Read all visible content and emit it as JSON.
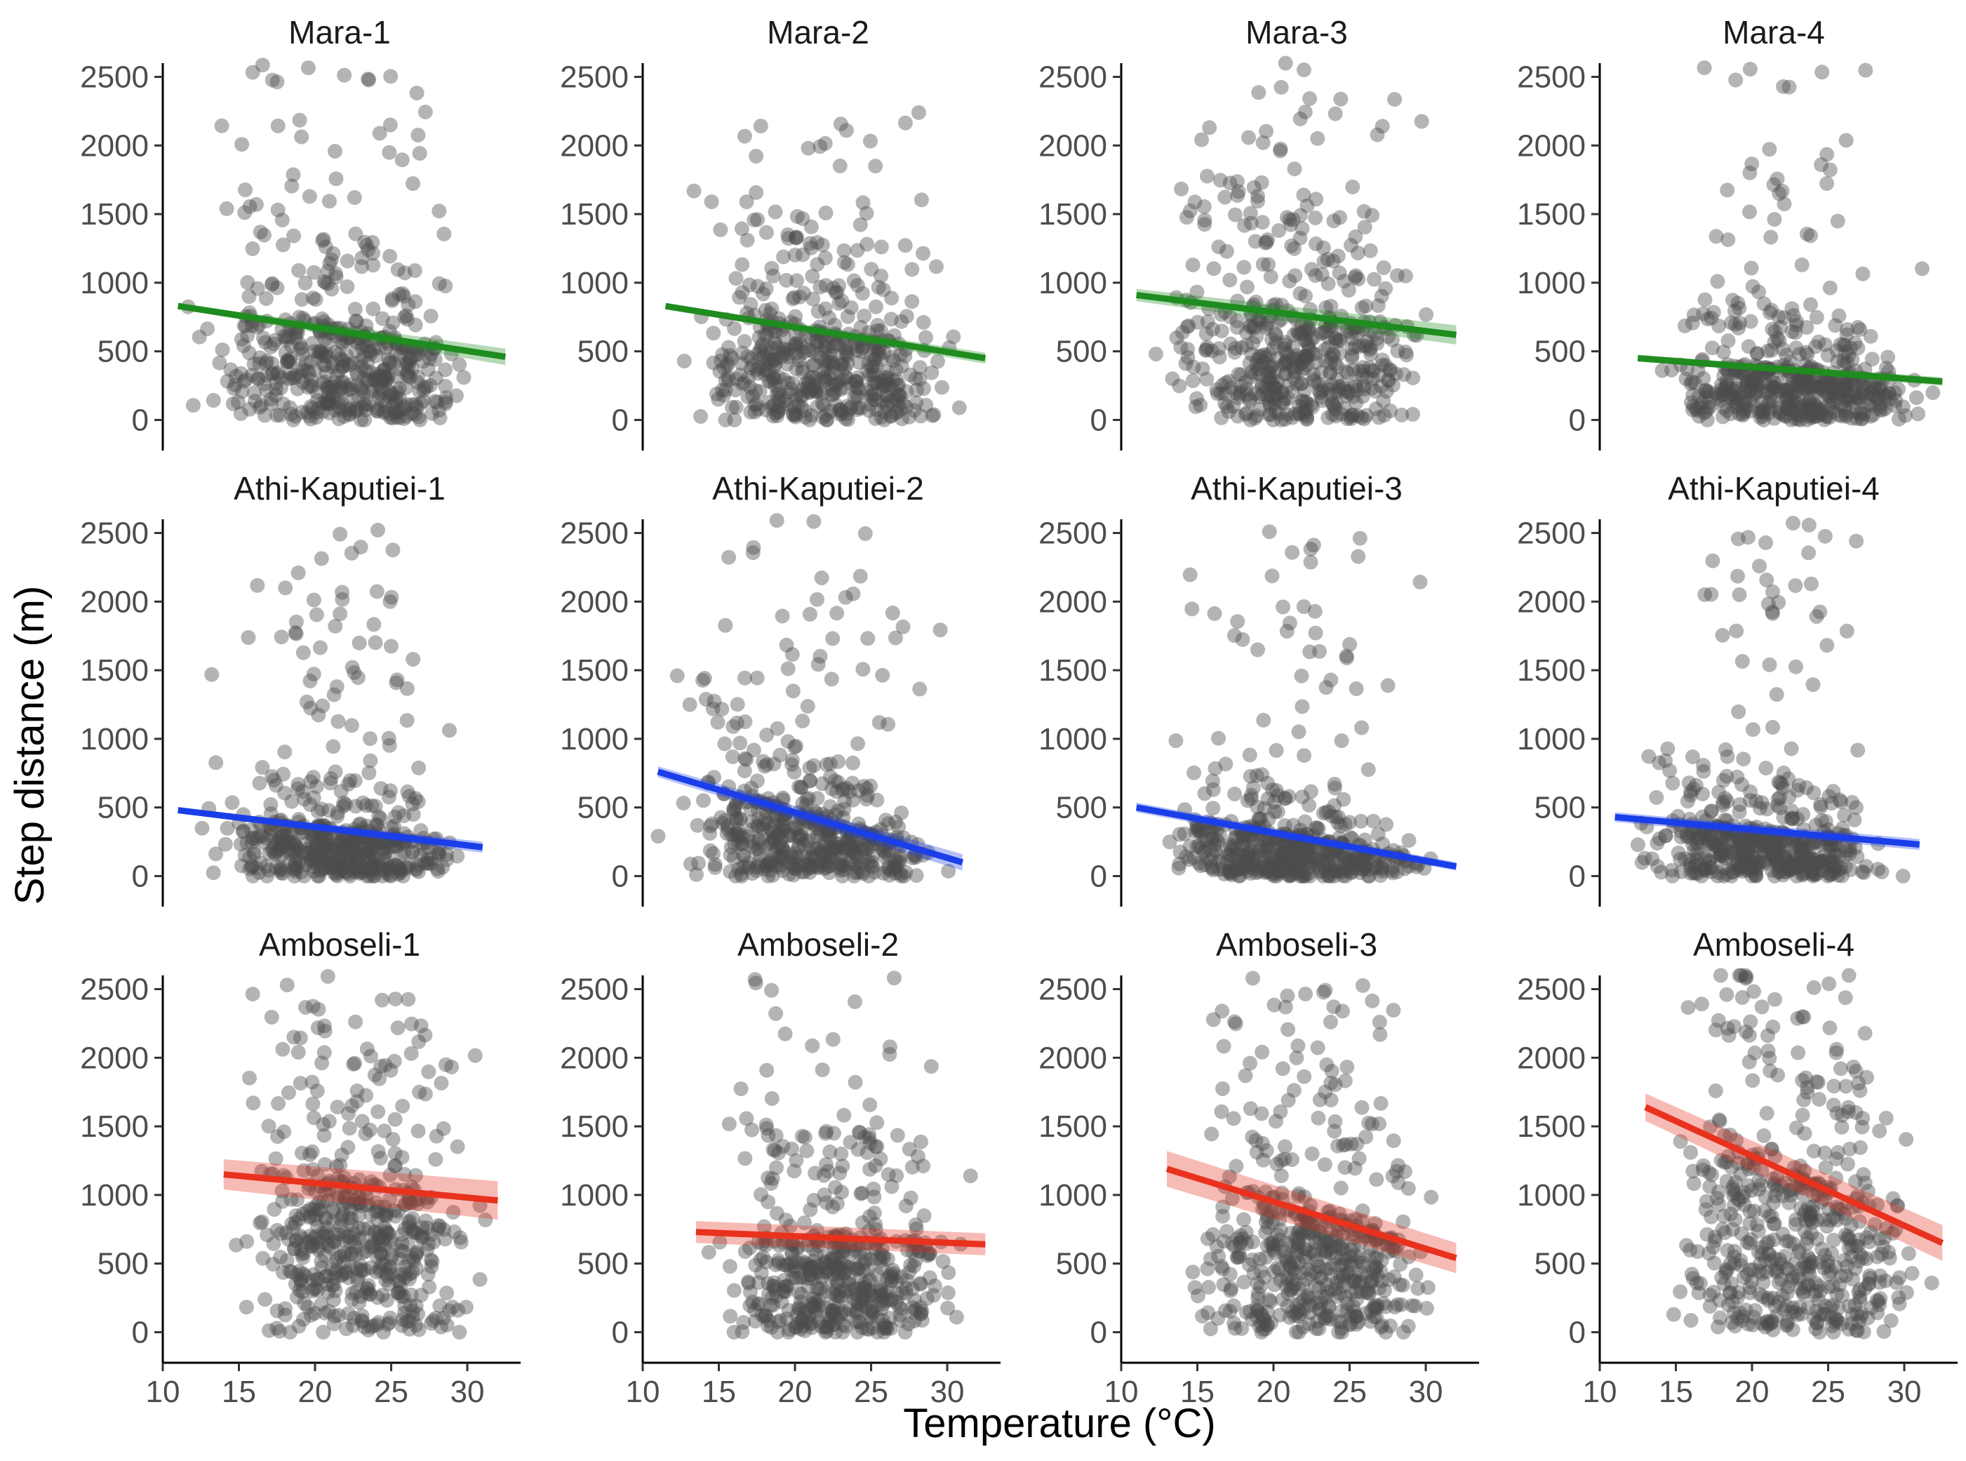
{
  "chart_data": {
    "type": "scatter",
    "layout": "facet-grid",
    "nrow": 3,
    "ncol": 4,
    "xlabel": "Temperature (°C)",
    "ylabel": "Step distance (m)",
    "xlim": [
      10,
      33.5
    ],
    "ylim": [
      -100,
      2600
    ],
    "xticks": [
      10,
      15,
      20,
      25,
      30
    ],
    "xtick_labels": [
      "10",
      "15",
      "20",
      "25",
      "30"
    ],
    "yticks": [
      0,
      500,
      1000,
      1500,
      2000,
      2500
    ],
    "ytick_labels": [
      "0",
      "500",
      "1000",
      "1500",
      "2000",
      "2500"
    ],
    "point_color": "#4d4d4d",
    "point_opacity": 0.42,
    "colors": {
      "Mara": "#1e8c1e",
      "Athi-Kaputiei": "#1a3ee8",
      "Amboseli": "#e8321e"
    },
    "panels": [
      {
        "title": "Mara-1",
        "group": "Mara",
        "seed": 11,
        "x_range": [
          10.5,
          33
        ],
        "ci_half_width": [
          20,
          60
        ],
        "fit": {
          "x": [
            11,
            32.5
          ],
          "y": [
            830,
            460
          ]
        }
      },
      {
        "title": "Mara-2",
        "group": "Mara",
        "seed": 12,
        "x_range": [
          11,
          33
        ],
        "ci_half_width": [
          20,
          40
        ],
        "fit": {
          "x": [
            11.5,
            32.5
          ],
          "y": [
            830,
            450
          ]
        }
      },
      {
        "title": "Mara-3",
        "group": "Mara",
        "seed": 13,
        "x_range": [
          10.5,
          32.5
        ],
        "ci_half_width": [
          45,
          70
        ],
        "fit": {
          "x": [
            11,
            32
          ],
          "y": [
            910,
            620
          ]
        }
      },
      {
        "title": "Mara-4",
        "group": "Mara",
        "seed": 14,
        "x_range": [
          12,
          33
        ],
        "ci_half_width": [
          25,
          30
        ],
        "fit": {
          "x": [
            12.5,
            32.5
          ],
          "y": [
            450,
            280
          ]
        }
      },
      {
        "title": "Athi-Kaputiei-1",
        "group": "Athi-Kaputiei",
        "seed": 21,
        "x_range": [
          11,
          31.5
        ],
        "ci_half_width": [
          20,
          40
        ],
        "fit": {
          "x": [
            11,
            31
          ],
          "y": [
            480,
            210
          ]
        }
      },
      {
        "title": "Athi-Kaputiei-2",
        "group": "Athi-Kaputiei",
        "seed": 22,
        "x_range": [
          10.5,
          31.5
        ],
        "ci_half_width": [
          40,
          60
        ],
        "fit": {
          "x": [
            11,
            31
          ],
          "y": [
            760,
            100
          ]
        }
      },
      {
        "title": "Athi-Kaputiei-3",
        "group": "Athi-Kaputiei",
        "seed": 23,
        "x_range": [
          10.5,
          32
        ],
        "ci_half_width": [
          35,
          30
        ],
        "fit": {
          "x": [
            11,
            32
          ],
          "y": [
            500,
            70
          ]
        }
      },
      {
        "title": "Athi-Kaputiei-4",
        "group": "Athi-Kaputiei",
        "seed": 24,
        "x_range": [
          10.5,
          31.5
        ],
        "ci_half_width": [
          35,
          40
        ],
        "fit": {
          "x": [
            11,
            31
          ],
          "y": [
            430,
            230
          ]
        }
      },
      {
        "title": "Amboseli-1",
        "group": "Amboseli",
        "seed": 31,
        "x_range": [
          13,
          32.5
        ],
        "ci_half_width": [
          110,
          140
        ],
        "fit": {
          "x": [
            14,
            32
          ],
          "y": [
            1150,
            960
          ]
        }
      },
      {
        "title": "Amboseli-2",
        "group": "Amboseli",
        "seed": 32,
        "x_range": [
          13,
          33
        ],
        "ci_half_width": [
          80,
          80
        ],
        "fit": {
          "x": [
            13.5,
            32.5
          ],
          "y": [
            730,
            640
          ]
        }
      },
      {
        "title": "Amboseli-3",
        "group": "Amboseli",
        "seed": 33,
        "x_range": [
          12.5,
          32.5
        ],
        "ci_half_width": [
          130,
          110
        ],
        "fit": {
          "x": [
            13,
            32
          ],
          "y": [
            1190,
            540
          ]
        }
      },
      {
        "title": "Amboseli-4",
        "group": "Amboseli",
        "seed": 34,
        "x_range": [
          12.5,
          33
        ],
        "ci_half_width": [
          100,
          130
        ],
        "fit": {
          "x": [
            13,
            32.5
          ],
          "y": [
            1640,
            650
          ]
        }
      }
    ]
  }
}
